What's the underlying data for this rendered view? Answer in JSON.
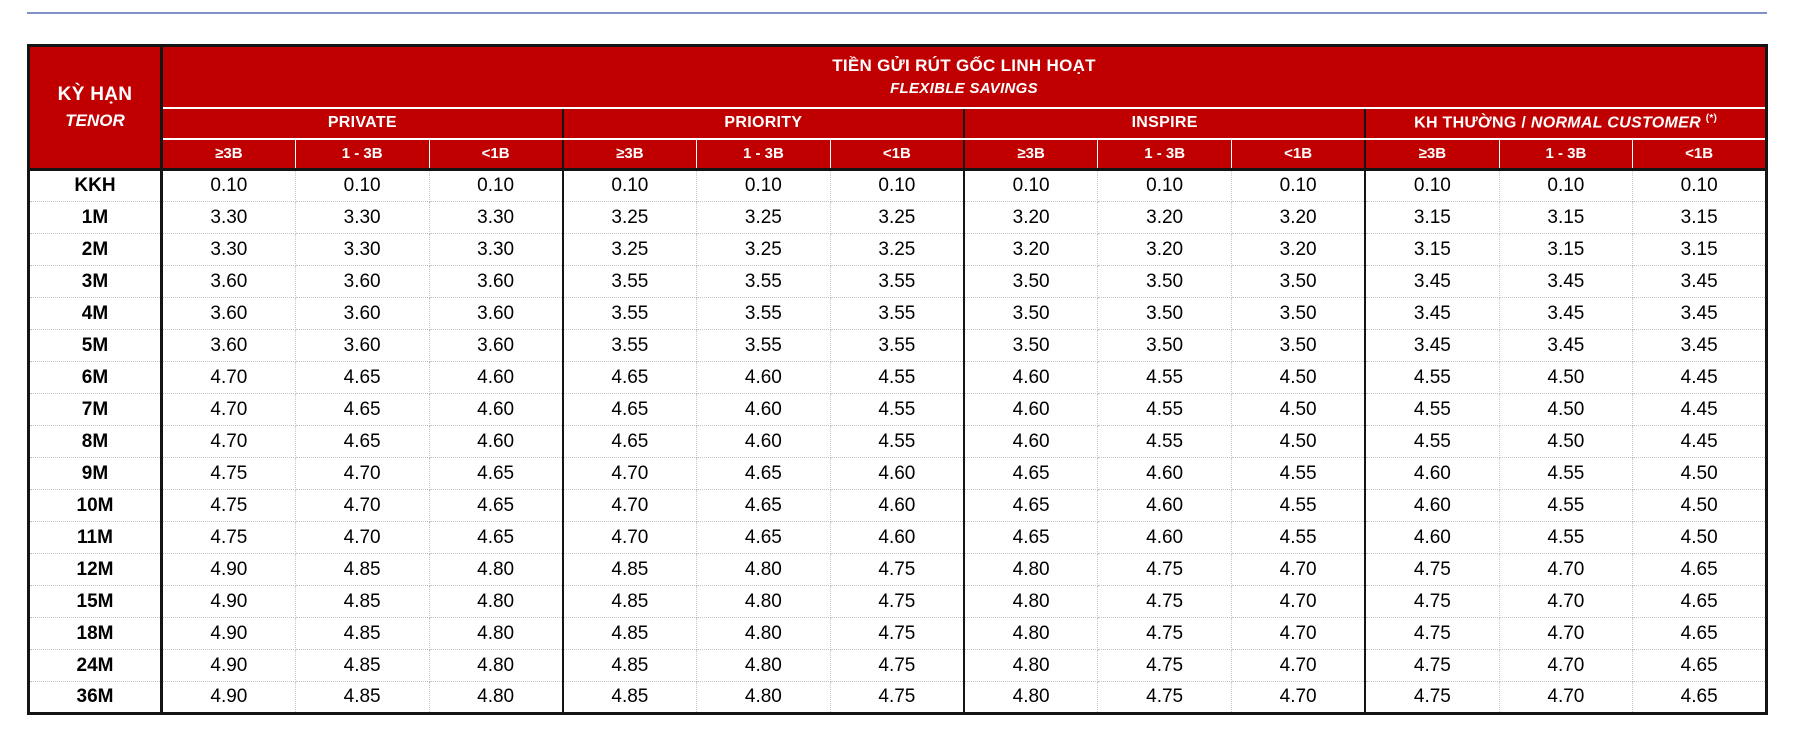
{
  "meta": {
    "top_rule_color": "#8091C7",
    "accent_red": "#C00000",
    "grid_black": "#141414"
  },
  "table": {
    "title_line1": "TIỀN GỬI RÚT GỐC LINH HOẠT",
    "title_line2": "FLEXIBLE SAVINGS",
    "tenor_header_line1": "KỲ HẠN",
    "tenor_header_line2": "TENOR",
    "groups": [
      {
        "key": "private",
        "label": "PRIVATE"
      },
      {
        "key": "priority",
        "label": "PRIORITY"
      },
      {
        "key": "inspire",
        "label": "INSPIRE"
      },
      {
        "key": "normal",
        "label_bold": "KH THƯỜNG /",
        "label_italic": "NORMAL CUSTOMER",
        "footnote_mark": "(*)"
      }
    ],
    "tier_headers": [
      "≥3B",
      "1 - 3B",
      "<1B"
    ],
    "rows": [
      {
        "tenor": "KKH",
        "values": [
          "0.10",
          "0.10",
          "0.10",
          "0.10",
          "0.10",
          "0.10",
          "0.10",
          "0.10",
          "0.10",
          "0.10",
          "0.10",
          "0.10"
        ]
      },
      {
        "tenor": "1M",
        "values": [
          "3.30",
          "3.30",
          "3.30",
          "3.25",
          "3.25",
          "3.25",
          "3.20",
          "3.20",
          "3.20",
          "3.15",
          "3.15",
          "3.15"
        ]
      },
      {
        "tenor": "2M",
        "values": [
          "3.30",
          "3.30",
          "3.30",
          "3.25",
          "3.25",
          "3.25",
          "3.20",
          "3.20",
          "3.20",
          "3.15",
          "3.15",
          "3.15"
        ]
      },
      {
        "tenor": "3M",
        "values": [
          "3.60",
          "3.60",
          "3.60",
          "3.55",
          "3.55",
          "3.55",
          "3.50",
          "3.50",
          "3.50",
          "3.45",
          "3.45",
          "3.45"
        ]
      },
      {
        "tenor": "4M",
        "values": [
          "3.60",
          "3.60",
          "3.60",
          "3.55",
          "3.55",
          "3.55",
          "3.50",
          "3.50",
          "3.50",
          "3.45",
          "3.45",
          "3.45"
        ]
      },
      {
        "tenor": "5M",
        "values": [
          "3.60",
          "3.60",
          "3.60",
          "3.55",
          "3.55",
          "3.55",
          "3.50",
          "3.50",
          "3.50",
          "3.45",
          "3.45",
          "3.45"
        ]
      },
      {
        "tenor": "6M",
        "values": [
          "4.70",
          "4.65",
          "4.60",
          "4.65",
          "4.60",
          "4.55",
          "4.60",
          "4.55",
          "4.50",
          "4.55",
          "4.50",
          "4.45"
        ]
      },
      {
        "tenor": "7M",
        "values": [
          "4.70",
          "4.65",
          "4.60",
          "4.65",
          "4.60",
          "4.55",
          "4.60",
          "4.55",
          "4.50",
          "4.55",
          "4.50",
          "4.45"
        ]
      },
      {
        "tenor": "8M",
        "values": [
          "4.70",
          "4.65",
          "4.60",
          "4.65",
          "4.60",
          "4.55",
          "4.60",
          "4.55",
          "4.50",
          "4.55",
          "4.50",
          "4.45"
        ]
      },
      {
        "tenor": "9M",
        "values": [
          "4.75",
          "4.70",
          "4.65",
          "4.70",
          "4.65",
          "4.60",
          "4.65",
          "4.60",
          "4.55",
          "4.60",
          "4.55",
          "4.50"
        ]
      },
      {
        "tenor": "10M",
        "values": [
          "4.75",
          "4.70",
          "4.65",
          "4.70",
          "4.65",
          "4.60",
          "4.65",
          "4.60",
          "4.55",
          "4.60",
          "4.55",
          "4.50"
        ]
      },
      {
        "tenor": "11M",
        "values": [
          "4.75",
          "4.70",
          "4.65",
          "4.70",
          "4.65",
          "4.60",
          "4.65",
          "4.60",
          "4.55",
          "4.60",
          "4.55",
          "4.50"
        ]
      },
      {
        "tenor": "12M",
        "values": [
          "4.90",
          "4.85",
          "4.80",
          "4.85",
          "4.80",
          "4.75",
          "4.80",
          "4.75",
          "4.70",
          "4.75",
          "4.70",
          "4.65"
        ]
      },
      {
        "tenor": "15M",
        "values": [
          "4.90",
          "4.85",
          "4.80",
          "4.85",
          "4.80",
          "4.75",
          "4.80",
          "4.75",
          "4.70",
          "4.75",
          "4.70",
          "4.65"
        ]
      },
      {
        "tenor": "18M",
        "values": [
          "4.90",
          "4.85",
          "4.80",
          "4.85",
          "4.80",
          "4.75",
          "4.80",
          "4.75",
          "4.70",
          "4.75",
          "4.70",
          "4.65"
        ]
      },
      {
        "tenor": "24M",
        "values": [
          "4.90",
          "4.85",
          "4.80",
          "4.85",
          "4.80",
          "4.75",
          "4.80",
          "4.75",
          "4.70",
          "4.75",
          "4.70",
          "4.65"
        ]
      },
      {
        "tenor": "36M",
        "values": [
          "4.90",
          "4.85",
          "4.80",
          "4.85",
          "4.80",
          "4.75",
          "4.80",
          "4.75",
          "4.70",
          "4.75",
          "4.70",
          "4.65"
        ]
      }
    ]
  }
}
